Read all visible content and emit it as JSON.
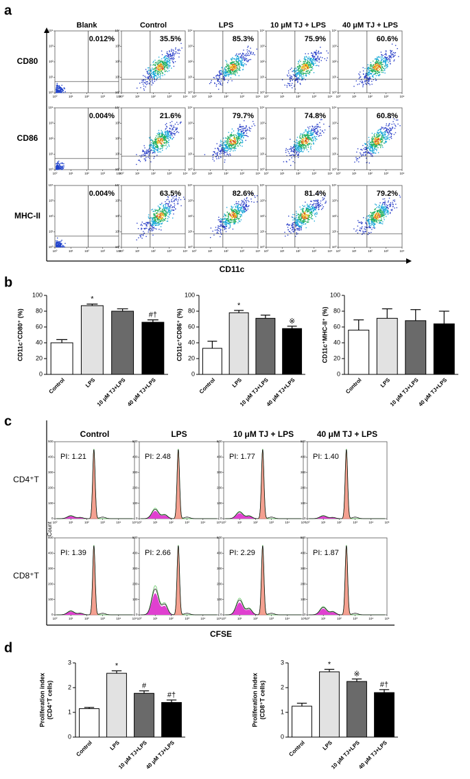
{
  "chart_data": [
    {
      "type": "flow-grid",
      "panel": "a",
      "columns": [
        "Blank",
        "Control",
        "LPS",
        "10 μM TJ + LPS",
        "40 μM TJ + LPS"
      ],
      "rows": [
        "CD80",
        "CD86",
        "MHC-II"
      ],
      "values": [
        [
          0.012,
          35.5,
          85.3,
          75.9,
          60.6
        ],
        [
          0.004,
          21.6,
          79.7,
          74.8,
          60.8
        ],
        [
          0.004,
          63.5,
          82.6,
          81.4,
          79.2
        ]
      ],
      "value_labels": [
        [
          "0.012%",
          "35.5%",
          "85.3%",
          "75.9%",
          "60.6%"
        ],
        [
          "0.004%",
          "21.6%",
          "79.7%",
          "74.8%",
          "60.8%"
        ],
        [
          "0.004%",
          "63.5%",
          "82.6%",
          "81.4%",
          "79.2%"
        ]
      ],
      "x_label": "CD11c",
      "log_scale": true,
      "xlim": [
        1,
        10000
      ],
      "ylim": [
        1,
        10000
      ],
      "xticks": [
        {
          "value": 1,
          "label": "10⁰"
        },
        {
          "value": 10,
          "label": "10¹"
        },
        {
          "value": 100,
          "label": "10²"
        },
        {
          "value": 1000,
          "label": "10³"
        },
        {
          "value": 10000,
          "label": "10⁴"
        }
      ],
      "yticks": [
        {
          "value": 1,
          "label": "10⁰"
        },
        {
          "value": 10,
          "label": "10¹"
        },
        {
          "value": 100,
          "label": "10²"
        },
        {
          "value": 1000,
          "label": "10³"
        },
        {
          "value": 10000,
          "label": "10⁴"
        }
      ]
    },
    {
      "type": "bar",
      "panel": "b",
      "y_label": "CD11c⁺CD80⁺ (%)",
      "categories": [
        "Control",
        "LPS",
        "10 μM TJ+LPS",
        "40 μM TJ+LPS"
      ],
      "colors": [
        "#ffffff",
        "#e2e2e2",
        "#6a6a6a",
        "#000000"
      ],
      "values": [
        40,
        87,
        80,
        66
      ],
      "errors": [
        4,
        2,
        3,
        3
      ],
      "annotations": [
        null,
        "*",
        null,
        "#†"
      ],
      "ylim": [
        0,
        100
      ],
      "yticks": [
        0,
        20,
        40,
        60,
        80,
        100
      ]
    },
    {
      "type": "bar",
      "y_label": "CD11c⁺CD86⁺ (%)",
      "categories": [
        "Control",
        "LPS",
        "10 μM TJ+LPS",
        "40 μM TJ+LPS"
      ],
      "colors": [
        "#ffffff",
        "#e2e2e2",
        "#6a6a6a",
        "#000000"
      ],
      "values": [
        33,
        78,
        71,
        58
      ],
      "errors": [
        9,
        3,
        4,
        3
      ],
      "annotations": [
        null,
        "*",
        null,
        "※"
      ],
      "ylim": [
        0,
        100
      ],
      "yticks": [
        0,
        20,
        40,
        60,
        80,
        100
      ]
    },
    {
      "type": "bar",
      "y_label": "CD11c⁺MHC-II⁺ (%)",
      "categories": [
        "Control",
        "LPS",
        "10 μM TJ+LPS",
        "40 μM TJ+LPS"
      ],
      "colors": [
        "#ffffff",
        "#e2e2e2",
        "#6a6a6a",
        "#000000"
      ],
      "values": [
        56,
        71,
        68,
        64
      ],
      "errors": [
        13,
        12,
        14,
        16
      ],
      "annotations": [
        null,
        null,
        null,
        null
      ],
      "ylim": [
        0,
        100
      ],
      "yticks": [
        0,
        20,
        40,
        60,
        80,
        100
      ]
    },
    {
      "type": "histogram-grid",
      "panel": "c",
      "columns": [
        "Control",
        "LPS",
        "10 μM TJ + LPS",
        "40 μM TJ + LPS"
      ],
      "rows": [
        "CD4⁺T",
        "CD8⁺T"
      ],
      "values": [
        [
          1.21,
          2.48,
          1.77,
          1.4
        ],
        [
          1.39,
          2.66,
          2.29,
          1.87
        ]
      ],
      "value_labels": [
        [
          "PI: 1.21",
          "PI: 2.48",
          "PI: 1.77",
          "PI: 1.40"
        ],
        [
          "PI: 1.39",
          "PI: 2.66",
          "PI: 2.29",
          "PI: 1.87"
        ]
      ],
      "x_label": "CFSE",
      "y_label": "Count",
      "log_scale": true,
      "xlim": [
        1,
        100000
      ],
      "ylim": [
        0,
        500
      ],
      "xticks": [
        {
          "value": 1,
          "label": "10⁰"
        },
        {
          "value": 10,
          "label": "10¹"
        },
        {
          "value": 100,
          "label": "10²"
        },
        {
          "value": 1000,
          "label": "10³"
        },
        {
          "value": 10000,
          "label": "10⁴"
        },
        {
          "value": 100000,
          "label": "10⁵"
        }
      ],
      "yticks": [
        0,
        100,
        200,
        300,
        400,
        500
      ]
    },
    {
      "type": "bar",
      "panel": "d",
      "y_label": [
        "Proliferation index",
        "(CD4⁺T cells)"
      ],
      "categories": [
        "Control",
        "LPS",
        "10 μM TJ+LPS",
        "40 μM TJ+LPS"
      ],
      "colors": [
        "#ffffff",
        "#e2e2e2",
        "#6a6a6a",
        "#000000"
      ],
      "values": [
        1.15,
        2.58,
        1.77,
        1.4
      ],
      "errors": [
        0.05,
        0.1,
        0.1,
        0.1
      ],
      "annotations": [
        null,
        "*",
        "#",
        "#†"
      ],
      "ylim": [
        0,
        3
      ],
      "yticks": [
        0,
        1,
        2,
        3
      ]
    },
    {
      "type": "bar",
      "y_label": [
        "Proliferation index",
        "(CD8⁺T cells)"
      ],
      "categories": [
        "Control",
        "LPS",
        "10 μM TJ+LPS",
        "40 μM TJ+LPS"
      ],
      "colors": [
        "#ffffff",
        "#e2e2e2",
        "#6a6a6a",
        "#000000"
      ],
      "values": [
        1.25,
        2.64,
        2.25,
        1.8
      ],
      "errors": [
        0.12,
        0.1,
        0.1,
        0.12
      ],
      "annotations": [
        null,
        "*",
        "※",
        "#†"
      ],
      "ylim": [
        0,
        3
      ],
      "yticks": [
        0,
        1,
        2,
        3
      ]
    }
  ]
}
